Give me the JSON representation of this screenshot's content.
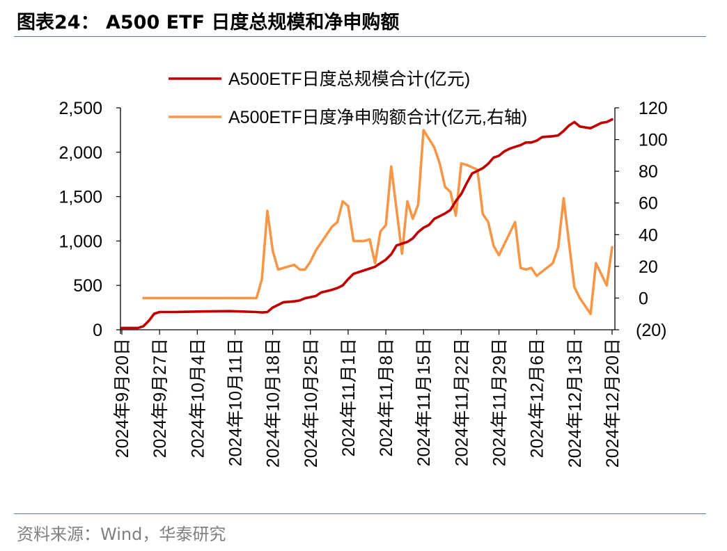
{
  "header": {
    "title": "图表24：   A500 ETF 日度总规模和净申购额"
  },
  "footer": {
    "source": "资料来源：Wind，华泰研究"
  },
  "colors": {
    "total_scale": "#C00000",
    "net_subscription": "#F79646",
    "rule": "#5b7db1",
    "source_text": "#808080"
  },
  "chart_data": {
    "type": "line",
    "title": "A500 ETF 日度总规模和净申购额",
    "legend_position": "top-center",
    "x_ticks": [
      "2024年9月20日",
      "2024年9月27日",
      "2024年10月4日",
      "2024年10月11日",
      "2024年10月18日",
      "2024年10月25日",
      "2024年11月1日",
      "2024年11月8日",
      "2024年11月15日",
      "2024年11月22日",
      "2024年11月29日",
      "2024年12月6日",
      "2024年12月13日",
      "2024年12月20日"
    ],
    "x_range": [
      0,
      91
    ],
    "y_left": {
      "min": 0,
      "max": 2500,
      "step": 500,
      "ticks": [
        "0",
        "500",
        "1,000",
        "1,500",
        "2,000",
        "2,500"
      ]
    },
    "y_right": {
      "min": -20,
      "max": 120,
      "step": 20,
      "ticks": [
        "(20)",
        "0",
        "20",
        "40",
        "60",
        "80",
        "100",
        "120"
      ]
    },
    "series": [
      {
        "name": "A500ETF日度总规模合计(亿元)",
        "axis": "left",
        "color": "#C00000",
        "points": [
          [
            0,
            20
          ],
          [
            3,
            20
          ],
          [
            4,
            40
          ],
          [
            5,
            100
          ],
          [
            6,
            180
          ],
          [
            7,
            200
          ],
          [
            10,
            200
          ],
          [
            14,
            205
          ],
          [
            20,
            210
          ],
          [
            25,
            200
          ],
          [
            26,
            195
          ],
          [
            27,
            200
          ],
          [
            28,
            250
          ],
          [
            29,
            280
          ],
          [
            30,
            310
          ],
          [
            32,
            320
          ],
          [
            33,
            330
          ],
          [
            34,
            355
          ],
          [
            36,
            380
          ],
          [
            37,
            420
          ],
          [
            39,
            450
          ],
          [
            40,
            470
          ],
          [
            41,
            500
          ],
          [
            42,
            570
          ],
          [
            43,
            630
          ],
          [
            45,
            670
          ],
          [
            46,
            690
          ],
          [
            47,
            710
          ],
          [
            48,
            750
          ],
          [
            49,
            790
          ],
          [
            50,
            850
          ],
          [
            51,
            950
          ],
          [
            52,
            970
          ],
          [
            53,
            990
          ],
          [
            54,
            1030
          ],
          [
            55,
            1100
          ],
          [
            56,
            1150
          ],
          [
            57,
            1180
          ],
          [
            58,
            1250
          ],
          [
            59,
            1280
          ],
          [
            60,
            1310
          ],
          [
            61,
            1350
          ],
          [
            62,
            1450
          ],
          [
            63,
            1530
          ],
          [
            64,
            1650
          ],
          [
            65,
            1760
          ],
          [
            66,
            1790
          ],
          [
            67,
            1820
          ],
          [
            68,
            1870
          ],
          [
            69,
            1940
          ],
          [
            70,
            1960
          ],
          [
            71,
            2010
          ],
          [
            72,
            2040
          ],
          [
            73,
            2060
          ],
          [
            74,
            2080
          ],
          [
            75,
            2110
          ],
          [
            76,
            2110
          ],
          [
            77,
            2130
          ],
          [
            78,
            2170
          ],
          [
            80,
            2180
          ],
          [
            81,
            2190
          ],
          [
            82,
            2240
          ],
          [
            83,
            2300
          ],
          [
            84,
            2340
          ],
          [
            85,
            2290
          ],
          [
            86,
            2280
          ],
          [
            87,
            2270
          ],
          [
            88,
            2300
          ],
          [
            89,
            2330
          ],
          [
            90,
            2340
          ],
          [
            91,
            2370
          ]
        ]
      },
      {
        "name": "A500ETF日度净申购额合计(亿元,右轴)",
        "axis": "right",
        "color": "#F79646",
        "points": [
          [
            4,
            0
          ],
          [
            25,
            0
          ],
          [
            26,
            12
          ],
          [
            27,
            55
          ],
          [
            28,
            30
          ],
          [
            29,
            18
          ],
          [
            31,
            20
          ],
          [
            32,
            21
          ],
          [
            33,
            18
          ],
          [
            34,
            18
          ],
          [
            35,
            23
          ],
          [
            36,
            30
          ],
          [
            37,
            35
          ],
          [
            38,
            40
          ],
          [
            39,
            45
          ],
          [
            40,
            48
          ],
          [
            41,
            61
          ],
          [
            42,
            58
          ],
          [
            43,
            36
          ],
          [
            45,
            36
          ],
          [
            46,
            37
          ],
          [
            47,
            22
          ],
          [
            48,
            42
          ],
          [
            49,
            46
          ],
          [
            50,
            83
          ],
          [
            52,
            28
          ],
          [
            53,
            61
          ],
          [
            54,
            50
          ],
          [
            55,
            59
          ],
          [
            56,
            106
          ],
          [
            58,
            95
          ],
          [
            59,
            85
          ],
          [
            60,
            70
          ],
          [
            61,
            67
          ],
          [
            62,
            52
          ],
          [
            63,
            85
          ],
          [
            64,
            84
          ],
          [
            66,
            81
          ],
          [
            67,
            53
          ],
          [
            68,
            48
          ],
          [
            69,
            33
          ],
          [
            70,
            27
          ],
          [
            73,
            48
          ],
          [
            74,
            19
          ],
          [
            75,
            18
          ],
          [
            76,
            19
          ],
          [
            77,
            14
          ],
          [
            80,
            22
          ],
          [
            81,
            32
          ],
          [
            82,
            63
          ],
          [
            84,
            7
          ],
          [
            85,
            0
          ],
          [
            87,
            -10
          ],
          [
            88,
            22
          ],
          [
            90,
            8
          ],
          [
            91,
            32
          ]
        ]
      }
    ]
  }
}
